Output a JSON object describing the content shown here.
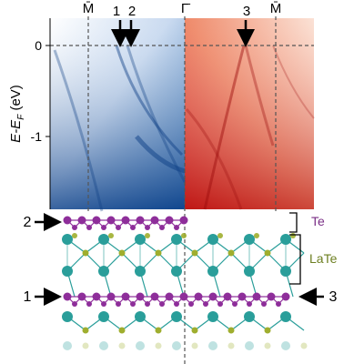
{
  "arpes": {
    "y_axis_label": "E-E",
    "y_axis_label_sub": "F",
    "y_axis_unit": "(eV)",
    "y_ticks": [
      "0",
      "-1"
    ],
    "k_point_labels": [
      "M̄",
      "Γ̄",
      "M̄"
    ],
    "arrow_labels": [
      "1",
      "2",
      "3"
    ],
    "left_panel_color": "#2a6fb8",
    "right_panel_color": "#d8382a"
  },
  "structure": {
    "bracket_labels": [
      "Te",
      "LaTe"
    ],
    "side_markers": [
      "2",
      "1",
      "3"
    ],
    "colors": {
      "te": "#8e2e9a",
      "la": "#2a9e9a",
      "te_small": "#9fae2e",
      "te_label": "#7a2f86",
      "late_label": "#6d7f21"
    }
  }
}
